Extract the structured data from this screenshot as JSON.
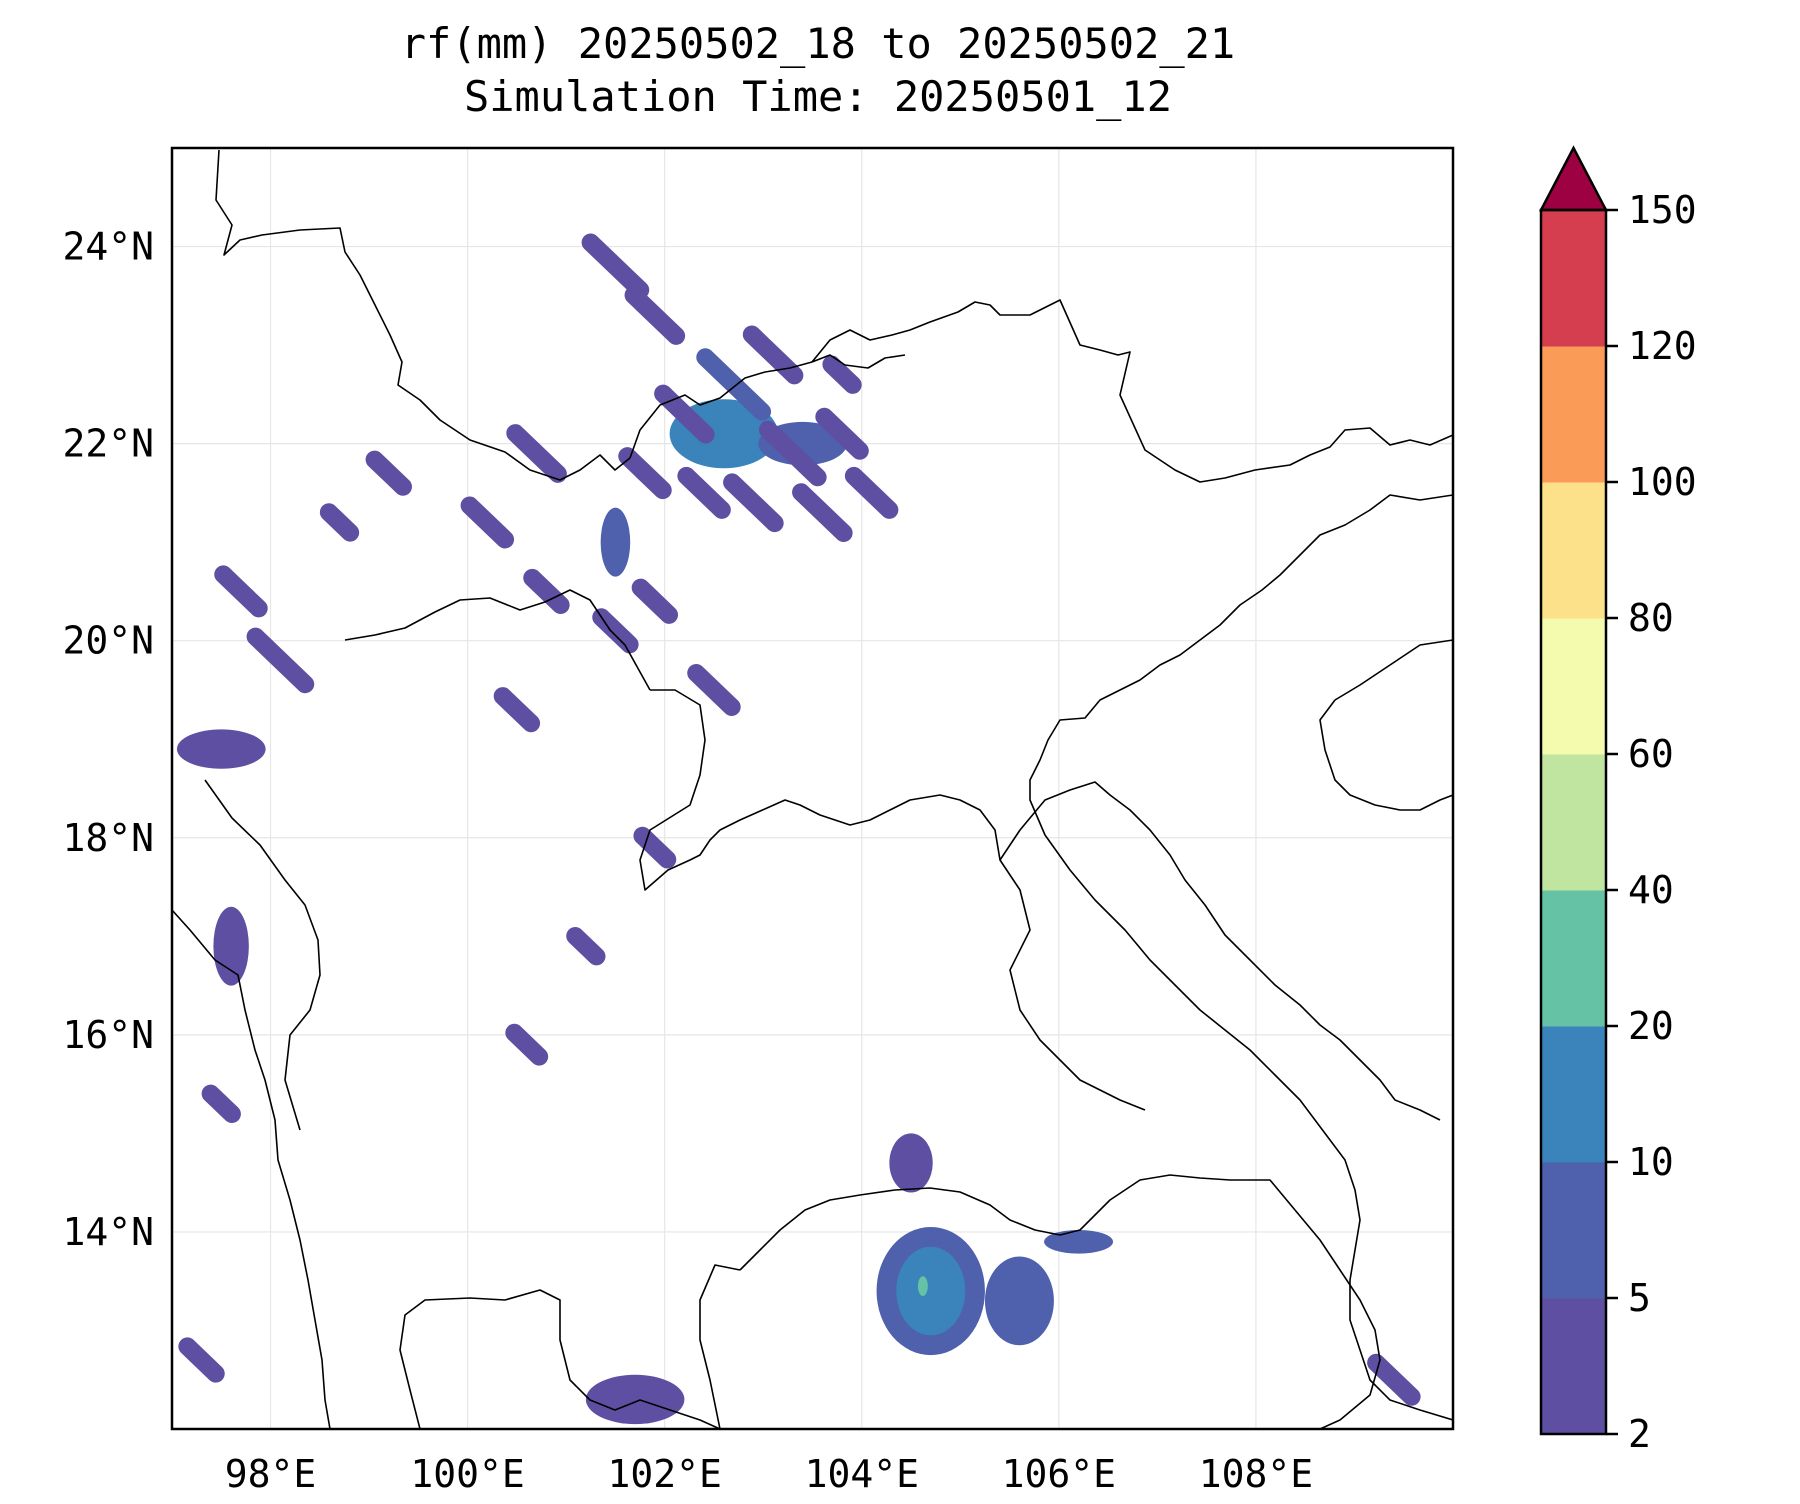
{
  "title": {
    "line1": "rf(mm) 20250502_18 to 20250502_21",
    "line2": "Simulation Time: 20250501_12"
  },
  "map": {
    "lon_range": [
      97,
      110
    ],
    "lat_range": [
      12,
      25
    ],
    "lon_ticks": [
      {
        "value": 98,
        "label": "98°E"
      },
      {
        "value": 100,
        "label": "100°E"
      },
      {
        "value": 102,
        "label": "102°E"
      },
      {
        "value": 104,
        "label": "104°E"
      },
      {
        "value": 106,
        "label": "106°E"
      },
      {
        "value": 108,
        "label": "108°E"
      }
    ],
    "lat_ticks": [
      {
        "value": 24,
        "label": "24°N"
      },
      {
        "value": 22,
        "label": "22°N"
      },
      {
        "value": 20,
        "label": "20°N"
      },
      {
        "value": 18,
        "label": "18°N"
      },
      {
        "value": 16,
        "label": "16°N"
      },
      {
        "value": 14,
        "label": "14°N"
      }
    ],
    "gridlines": true
  },
  "colorbar": {
    "levels": [
      {
        "label": "2",
        "color": "#5e4fa2"
      },
      {
        "label": "5",
        "color": "#4f60ad"
      },
      {
        "label": "10",
        "color": "#3a84bb"
      },
      {
        "label": "20",
        "color": "#66c2a5"
      },
      {
        "label": "40",
        "color": "#bfe5a0"
      },
      {
        "label": "60",
        "color": "#f4faae"
      },
      {
        "label": "80",
        "color": "#fce08a"
      },
      {
        "label": "100",
        "color": "#fa9b58"
      },
      {
        "label": "120",
        "color": "#d53e4f"
      },
      {
        "label": "150",
        "color": ""
      }
    ],
    "extend_color": "#9e0142"
  },
  "rain_areas": [
    {
      "lon": 104.7,
      "lat": 13.4,
      "rx": 0.55,
      "ry": 0.65,
      "level": 1
    },
    {
      "lon": 104.7,
      "lat": 13.4,
      "rx": 0.35,
      "ry": 0.45,
      "level": 2
    },
    {
      "lon": 104.62,
      "lat": 13.45,
      "rx": 0.05,
      "ry": 0.1,
      "level": 3
    },
    {
      "lon": 105.6,
      "lat": 13.3,
      "rx": 0.35,
      "ry": 0.45,
      "level": 1
    },
    {
      "lon": 106.2,
      "lat": 13.9,
      "rx": 0.35,
      "ry": 0.12,
      "level": 1
    },
    {
      "lon": 104.5,
      "lat": 14.7,
      "rx": 0.22,
      "ry": 0.3,
      "level": 0
    },
    {
      "lon": 102.6,
      "lat": 22.1,
      "rx": 0.55,
      "ry": 0.35,
      "level": 2
    },
    {
      "lon": 103.4,
      "lat": 22.0,
      "rx": 0.45,
      "ry": 0.22,
      "level": 1
    },
    {
      "lon": 101.5,
      "lat": 21.0,
      "rx": 0.15,
      "ry": 0.35,
      "level": 1
    },
    {
      "lon": 97.6,
      "lat": 16.9,
      "rx": 0.18,
      "ry": 0.4,
      "level": 0
    },
    {
      "lon": 97.5,
      "lat": 18.9,
      "rx": 0.45,
      "ry": 0.2,
      "level": 0
    },
    {
      "lon": 101.7,
      "lat": 12.3,
      "rx": 0.5,
      "ry": 0.25,
      "level": 0
    }
  ],
  "rain_streaks": [
    {
      "lon": 101.5,
      "lat": 23.8,
      "len": 0.7,
      "level": 0
    },
    {
      "lon": 101.9,
      "lat": 23.3,
      "len": 0.6,
      "level": 0
    },
    {
      "lon": 102.7,
      "lat": 22.6,
      "len": 0.8,
      "level": 1
    },
    {
      "lon": 102.2,
      "lat": 22.3,
      "len": 0.6,
      "level": 0
    },
    {
      "lon": 103.1,
      "lat": 22.9,
      "len": 0.6,
      "level": 0
    },
    {
      "lon": 103.3,
      "lat": 21.9,
      "len": 0.7,
      "level": 0
    },
    {
      "lon": 103.8,
      "lat": 22.1,
      "len": 0.5,
      "level": 0
    },
    {
      "lon": 104.1,
      "lat": 21.5,
      "len": 0.5,
      "level": 0
    },
    {
      "lon": 103.6,
      "lat": 21.3,
      "len": 0.6,
      "level": 0
    },
    {
      "lon": 102.9,
      "lat": 21.4,
      "len": 0.6,
      "level": 0
    },
    {
      "lon": 102.4,
      "lat": 21.5,
      "len": 0.5,
      "level": 0
    },
    {
      "lon": 101.8,
      "lat": 21.7,
      "len": 0.5,
      "level": 0
    },
    {
      "lon": 100.7,
      "lat": 21.9,
      "len": 0.6,
      "level": 0
    },
    {
      "lon": 100.2,
      "lat": 21.2,
      "len": 0.5,
      "level": 0
    },
    {
      "lon": 99.2,
      "lat": 21.7,
      "len": 0.4,
      "level": 0
    },
    {
      "lon": 98.1,
      "lat": 19.8,
      "len": 0.7,
      "level": 0
    },
    {
      "lon": 100.8,
      "lat": 20.5,
      "len": 0.4,
      "level": 0
    },
    {
      "lon": 101.5,
      "lat": 20.1,
      "len": 0.4,
      "level": 0
    },
    {
      "lon": 102.5,
      "lat": 19.5,
      "len": 0.5,
      "level": 0
    },
    {
      "lon": 101.9,
      "lat": 20.4,
      "len": 0.4,
      "level": 0
    },
    {
      "lon": 100.5,
      "lat": 19.3,
      "len": 0.4,
      "level": 0
    },
    {
      "lon": 97.7,
      "lat": 20.5,
      "len": 0.5,
      "level": 0
    },
    {
      "lon": 98.7,
      "lat": 21.2,
      "len": 0.3,
      "level": 0
    },
    {
      "lon": 97.3,
      "lat": 12.7,
      "len": 0.4,
      "level": 0
    },
    {
      "lon": 109.4,
      "lat": 12.5,
      "len": 0.5,
      "level": 0
    },
    {
      "lon": 101.2,
      "lat": 16.9,
      "len": 0.3,
      "level": 0
    },
    {
      "lon": 100.6,
      "lat": 15.9,
      "len": 0.35,
      "level": 0
    },
    {
      "lon": 101.9,
      "lat": 17.9,
      "len": 0.35,
      "level": 0
    },
    {
      "lon": 103.8,
      "lat": 22.7,
      "len": 0.3,
      "level": 0
    },
    {
      "lon": 97.5,
      "lat": 15.3,
      "len": 0.3,
      "level": 0
    }
  ]
}
